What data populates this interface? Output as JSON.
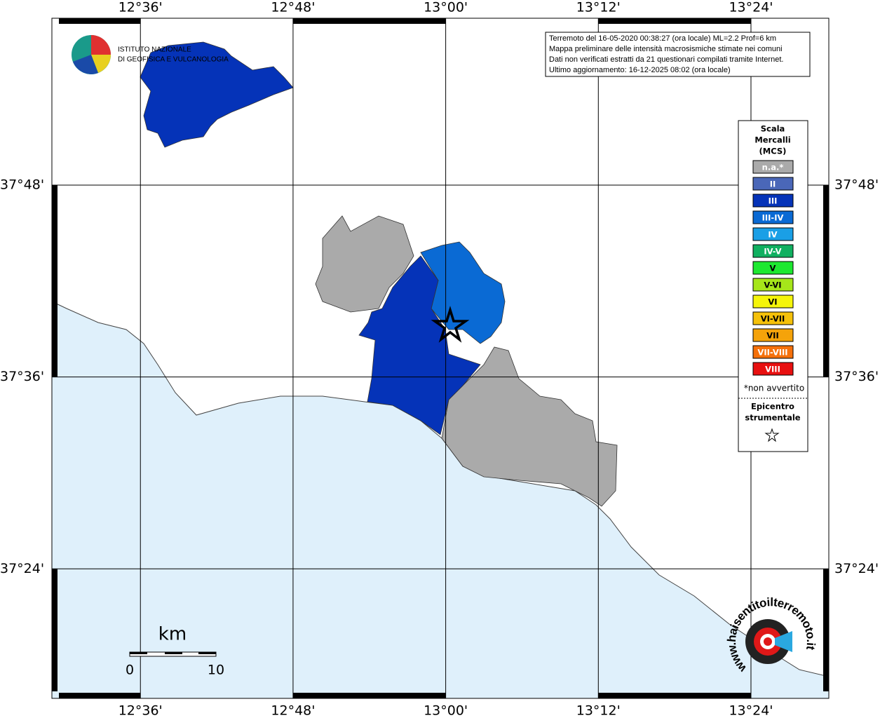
{
  "map": {
    "lon_ticks": [
      {
        "value": 12.6,
        "label": "12°36'"
      },
      {
        "value": 12.8,
        "label": "12°48'"
      },
      {
        "value": 13.0,
        "label": "13°00'"
      },
      {
        "value": 13.2,
        "label": "13°12'"
      },
      {
        "value": 13.4,
        "label": "13°24'"
      }
    ],
    "lat_ticks": [
      {
        "value": 37.8,
        "label": "37°48'"
      },
      {
        "value": 37.6,
        "label": "37°36'"
      },
      {
        "value": 37.4,
        "label": "37°24'"
      }
    ],
    "xlim": [
      12.484,
      13.502
    ],
    "ylim": [
      37.265,
      37.974
    ]
  },
  "info_box": {
    "lines": [
      "Terremoto del 16-05-2020 00:38:27 (ora locale) ML=2.2 Prof=6 km",
      "Mappa preliminare delle intensità macrosismiche stimate nei comuni",
      "Dati non verificati estratti da 21 questionari compilati tramite Internet.",
      "Ultimo aggiornamento: 16-12-2025 08:02 (ora locale)"
    ]
  },
  "logo": {
    "line1": "ISTITUTO NAZIONALE",
    "line2": "DI GEOFISICA E VULCANOLOGIA"
  },
  "legend": {
    "title": [
      "Scala",
      "Mercalli",
      "(MCS)"
    ],
    "items": [
      {
        "label": "n.a.*",
        "color": "#aaaaaa"
      },
      {
        "label": "II",
        "color": "#4a67b8"
      },
      {
        "label": "III",
        "color": "#0533b8"
      },
      {
        "label": "III-IV",
        "color": "#0a6ad4"
      },
      {
        "label": "IV",
        "color": "#1a9fe6"
      },
      {
        "label": "IV-V",
        "color": "#10b060"
      },
      {
        "label": "V",
        "color": "#1de830"
      },
      {
        "label": "V-VI",
        "color": "#a6e61a"
      },
      {
        "label": "VI",
        "color": "#f5f50a"
      },
      {
        "label": "VI-VII",
        "color": "#f5c10a"
      },
      {
        "label": "VII",
        "color": "#f5a30a"
      },
      {
        "label": "VII-VIII",
        "color": "#f5700a"
      },
      {
        "label": "VIII",
        "color": "#e81010"
      }
    ],
    "note": "*non avvertito",
    "epicenter": [
      "Epicentro",
      "strumentale"
    ]
  },
  "scale_bar": {
    "unit": "km",
    "labels": [
      "0",
      "10"
    ]
  },
  "site_logo": {
    "text": "www.haisentitoilterremoto.it"
  }
}
